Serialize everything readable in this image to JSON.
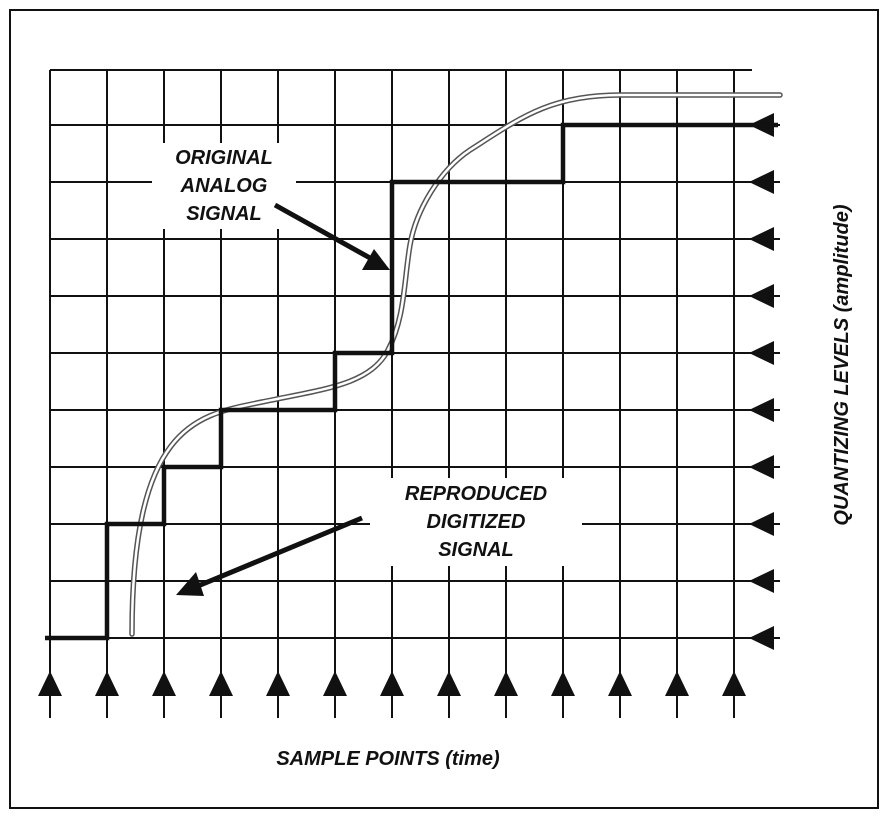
{
  "figure": {
    "analog_label": [
      "ORIGINAL",
      "ANALOG",
      "SIGNAL"
    ],
    "digital_label": [
      "REPRODUCED",
      "DIGITIZED",
      "SIGNAL"
    ],
    "x_axis_label": "SAMPLE POINTS (time)",
    "y_axis_label": "QUANTIZING LEVELS (amplitude)"
  },
  "diagram": {
    "sample_points": 13,
    "quantizing_levels": 10,
    "digitized_levels": [
      0,
      2,
      3,
      4,
      4,
      5,
      8,
      8,
      8,
      9,
      9,
      9,
      9
    ],
    "colors": {
      "ink": "#111111",
      "analog_signal": "#9a9a9a",
      "background": "#ffffff"
    }
  }
}
